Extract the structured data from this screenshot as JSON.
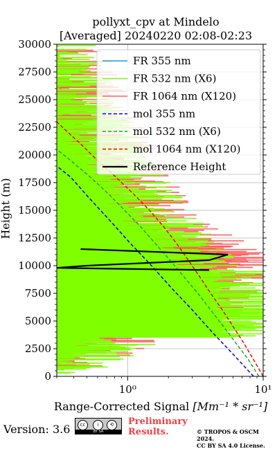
{
  "chart_data": {
    "type": "line",
    "title": "pollyxt_cpv at Mindelo",
    "subtitle": "[Averaged] 20240220 02:08-02:23",
    "xlabel": "Range-Corrected Signal",
    "xlabel_units": "[Mm⁻¹ * sr⁻¹]",
    "ylabel": "Height (m)",
    "xscale": "log",
    "xlim": [
      0.3,
      10
    ],
    "ylim": [
      0,
      30000
    ],
    "x_ticks": [
      1,
      10
    ],
    "x_tick_labels": [
      "10⁰",
      "10¹"
    ],
    "y_ticks": [
      0,
      2500,
      5000,
      7500,
      10000,
      12500,
      15000,
      17500,
      20000,
      22500,
      25000,
      27500,
      30000
    ],
    "grid": true,
    "legend_position": "top-right",
    "series": [
      {
        "name": "FR 355 nm",
        "color": "#1f9bd6",
        "style": "solid",
        "x": [],
        "y": []
      },
      {
        "name": "FR 532 nm (X6)",
        "color": "#80ff00",
        "style": "solid",
        "x": [
          0.3,
          0.6,
          1.2,
          2.0,
          3.0,
          4.2,
          5.5,
          7.0,
          9.0,
          3.0,
          1.5,
          0.8,
          0.5,
          0.35,
          0.3
        ],
        "y": [
          300,
          2000,
          4000,
          6000,
          7500,
          8500,
          9200,
          9500,
          3500,
          11500,
          15000,
          20000,
          24000,
          28000,
          30000
        ]
      },
      {
        "name": "FR 1064 nm (X120)",
        "color": "#ff6060",
        "style": "solid",
        "x": [
          0.3,
          0.6,
          1.5,
          3.0,
          5.0,
          7.0,
          8.0,
          3.5,
          1.5,
          0.8,
          0.5,
          0.3
        ],
        "y": [
          500,
          2500,
          4500,
          6000,
          7500,
          8500,
          9500,
          12000,
          15000,
          20000,
          25000,
          29500
        ]
      },
      {
        "name": "mol 355 nm",
        "color": "#0000ee",
        "style": "dashed",
        "x": [
          8.5,
          6.0,
          4.2,
          3.0,
          2.1,
          1.5,
          1.05,
          0.75,
          0.53,
          0.38,
          0.3
        ],
        "y": [
          0,
          2000,
          4000,
          6000,
          8000,
          10000,
          12000,
          14000,
          16000,
          18000,
          19000
        ]
      },
      {
        "name": "mol 532 nm (X6)",
        "color": "#1fa81f",
        "style": "dashed",
        "x": [
          9.3,
          7.8,
          6.3,
          5.1,
          4.1,
          3.3,
          2.6,
          2.05,
          1.6,
          1.25,
          0.95,
          0.72,
          0.53,
          0.38,
          0.3
        ],
        "y": [
          0,
          1500,
          3000,
          4500,
          6000,
          7500,
          9000,
          10500,
          12000,
          13500,
          15000,
          16500,
          18000,
          19500,
          20500
        ]
      },
      {
        "name": "mol 1064 nm (X120)",
        "color": "#ee0000",
        "style": "dashed",
        "x": [
          10.0,
          8.5,
          7.2,
          6.0,
          5.0,
          4.1,
          3.4,
          2.8,
          2.3,
          1.85,
          1.45,
          1.1,
          0.82,
          0.6,
          0.45,
          0.33,
          0.3
        ],
        "y": [
          0,
          1500,
          3000,
          4500,
          6000,
          7500,
          9000,
          10500,
          12000,
          13500,
          15000,
          16500,
          18000,
          19500,
          21000,
          22500,
          23000
        ]
      },
      {
        "name": "Reference Height",
        "color": "#000000",
        "style": "solid",
        "x": [
          0.45,
          5.5,
          4.0,
          0.5,
          0.3,
          4.0
        ],
        "y": [
          11500,
          11000,
          10500,
          10000,
          9800,
          9600
        ]
      }
    ]
  },
  "footer": {
    "version": "Version: 3.6",
    "preliminary_line1": "Preliminary",
    "preliminary_line2": "Results.",
    "copyright_line1": "© TROPOS & OSCM 2024.",
    "copyright_line2": "CC BY SA 4.0 License.",
    "license_badge": "BY SA"
  }
}
